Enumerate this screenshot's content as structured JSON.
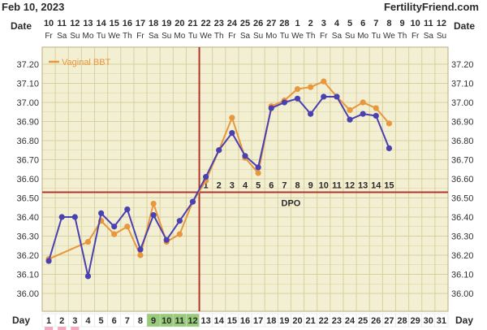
{
  "header": {
    "date": "Feb 10, 2023",
    "site": "FertilityFriend.com"
  },
  "colors": {
    "background": "#f2efd2",
    "grid": "#d9d0a0",
    "purple": "#4a40b0",
    "orange": "#e8973c",
    "coverline": "#b0342c",
    "fertile_green": "#99cc7a",
    "period_pink": "#f5a8c0"
  },
  "chart_data": {
    "type": "line",
    "title": "",
    "row_labels": {
      "date": "Date",
      "day": "Day",
      "dpo": "DPO"
    },
    "date_numbers": [
      "10",
      "11",
      "12",
      "13",
      "14",
      "15",
      "16",
      "17",
      "18",
      "19",
      "20",
      "21",
      "22",
      "23",
      "24",
      "25",
      "26",
      "27",
      "28",
      "1",
      "2",
      "3",
      "4",
      "5",
      "6",
      "7",
      "8",
      "9",
      "10",
      "11",
      "12"
    ],
    "weekdays": [
      "Fr",
      "Sa",
      "Su",
      "Mo",
      "Tu",
      "We",
      "Th",
      "Fr",
      "Sa",
      "Su",
      "Mo",
      "Tu",
      "We",
      "Th",
      "Fr",
      "Sa",
      "Su",
      "Mo",
      "Tu",
      "We",
      "Th",
      "Fr",
      "Sa",
      "Su",
      "Mo",
      "Tu",
      "We",
      "Th",
      "Fr",
      "Sa",
      "Su"
    ],
    "cycle_days": [
      1,
      2,
      3,
      4,
      5,
      6,
      7,
      8,
      9,
      10,
      11,
      12,
      13,
      14,
      15,
      16,
      17,
      18,
      19,
      20,
      21,
      22,
      23,
      24,
      25,
      26,
      27,
      28,
      29,
      30,
      31
    ],
    "fertile_days": [
      9,
      10,
      11,
      12
    ],
    "period_days": [
      1,
      2,
      3
    ],
    "y_ticks": [
      "36.00",
      "36.10",
      "36.20",
      "36.30",
      "36.40",
      "36.50",
      "36.60",
      "36.70",
      "36.80",
      "36.90",
      "37.00",
      "37.10",
      "37.20"
    ],
    "ylim": [
      36.0,
      37.2
    ],
    "ovulation_day": 12,
    "coverline": 36.53,
    "dpo_labels": [
      "1",
      "2",
      "3",
      "4",
      "5",
      "6",
      "7",
      "8",
      "9",
      "10",
      "11",
      "12",
      "13",
      "14",
      "15"
    ],
    "legend": "Vaginal BBT",
    "series": [
      {
        "name": "Vaginal BBT",
        "color": "orange",
        "x": [
          1,
          4,
          5,
          6,
          7,
          8,
          9,
          10,
          11,
          12,
          13,
          14,
          15,
          16,
          17,
          18,
          19,
          20,
          21,
          22,
          23,
          24,
          25,
          26,
          27
        ],
        "values": [
          36.18,
          36.27,
          36.38,
          36.31,
          36.35,
          36.2,
          36.47,
          36.27,
          36.31,
          36.48,
          36.59,
          36.75,
          36.92,
          36.71,
          36.63,
          36.98,
          37.01,
          37.07,
          37.08,
          37.11,
          37.03,
          36.96,
          37.0,
          36.97,
          36.89
        ]
      },
      {
        "name": "",
        "color": "purple",
        "x": [
          1,
          2,
          3,
          4,
          5,
          6,
          7,
          8,
          9,
          10,
          11,
          12,
          13,
          14,
          15,
          16,
          17,
          18,
          19,
          20,
          21,
          22,
          23,
          24,
          25,
          26,
          27
        ],
        "values": [
          36.17,
          36.4,
          36.4,
          36.09,
          36.42,
          36.35,
          36.44,
          36.23,
          36.41,
          36.28,
          36.38,
          36.48,
          36.61,
          36.75,
          36.84,
          36.72,
          36.66,
          36.97,
          37.0,
          37.02,
          36.94,
          37.03,
          37.03,
          36.91,
          36.94,
          36.93,
          36.76
        ]
      }
    ]
  }
}
